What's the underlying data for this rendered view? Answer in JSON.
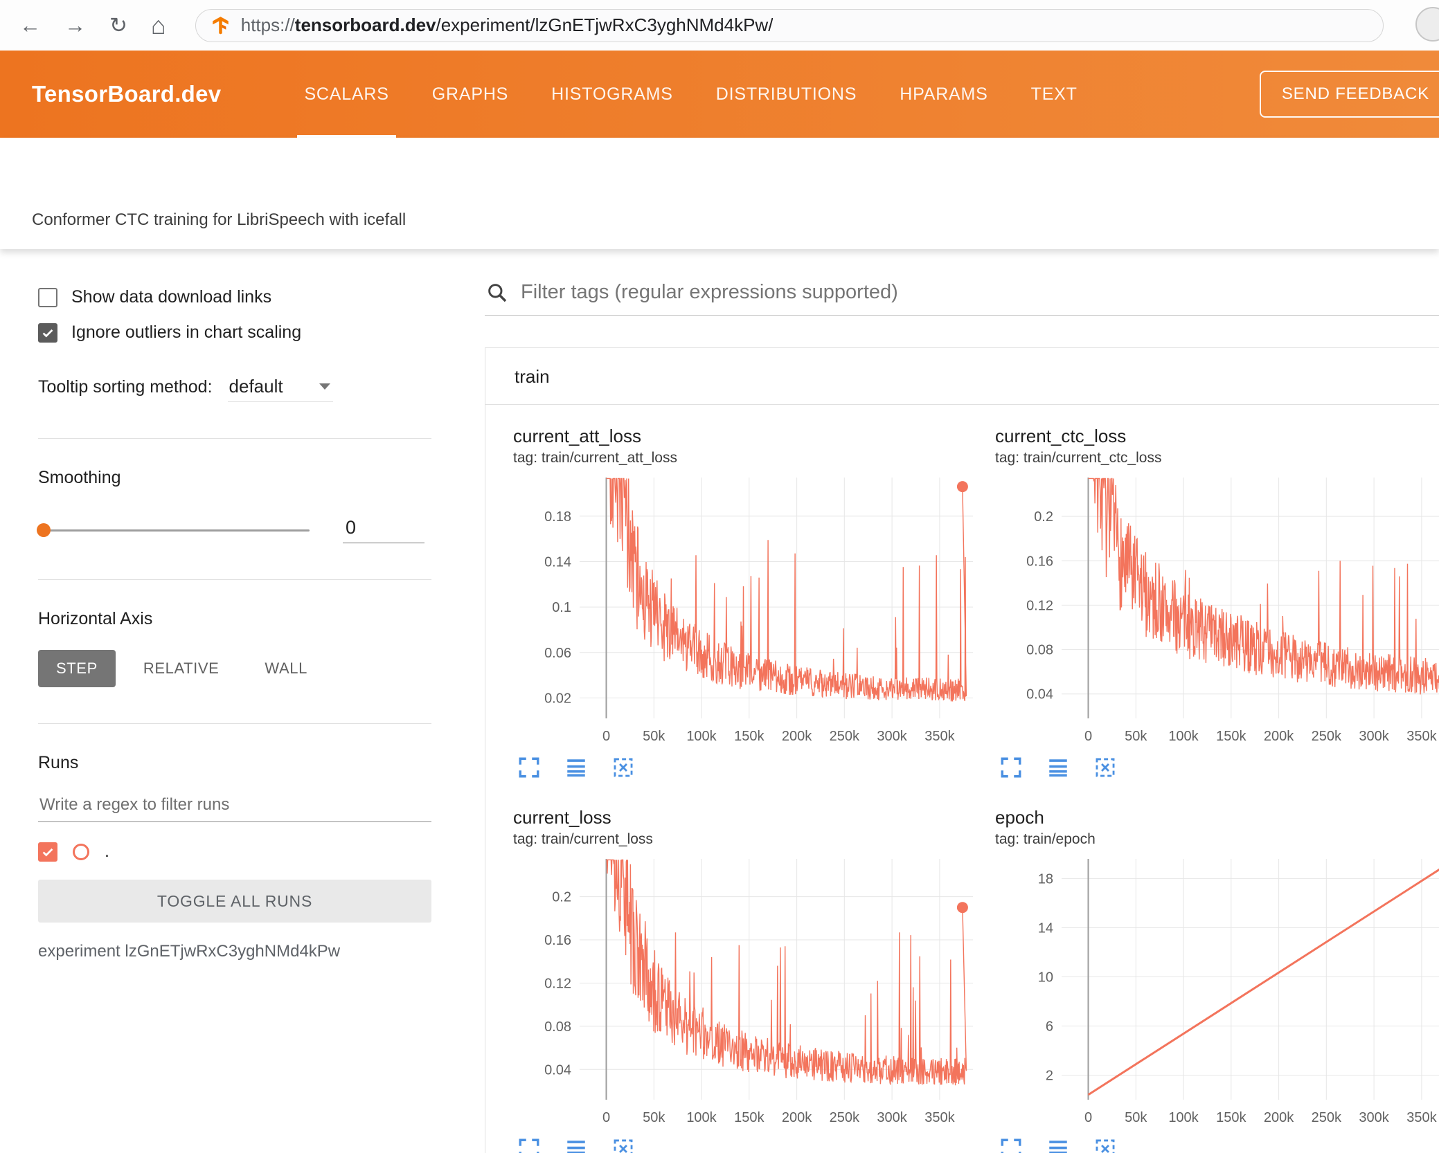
{
  "browser": {
    "back_glyph": "←",
    "forward_glyph": "→",
    "reload_glyph": "↻",
    "home_glyph": "⌂",
    "url_scheme": "https://",
    "url_domain": "tensorboard.dev",
    "url_path": "/experiment/lzGnETjwRxC3yghNMd4kPw/"
  },
  "header": {
    "logo": "TensorBoard.dev",
    "tabs": [
      {
        "label": "SCALARS",
        "active": true
      },
      {
        "label": "GRAPHS",
        "active": false
      },
      {
        "label": "HISTOGRAMS",
        "active": false
      },
      {
        "label": "DISTRIBUTIONS",
        "active": false
      },
      {
        "label": "HPARAMS",
        "active": false
      },
      {
        "label": "TEXT",
        "active": false
      }
    ],
    "feedback_button": "SEND FEEDBACK"
  },
  "subtitle": "Conformer CTC training for LibriSpeech with icefall",
  "sidebar": {
    "show_download_label": "Show data download links",
    "show_download_checked": false,
    "ignore_outliers_label": "Ignore outliers in chart scaling",
    "ignore_outliers_checked": true,
    "tooltip_sorting_label": "Tooltip sorting method:",
    "tooltip_sorting_value": "default",
    "smoothing_label": "Smoothing",
    "smoothing_value": "0",
    "horizontal_axis_label": "Horizontal Axis",
    "axis_buttons": [
      "STEP",
      "RELATIVE",
      "WALL"
    ],
    "axis_active": "STEP",
    "runs_label": "Runs",
    "runs_filter_placeholder": "Write a regex to filter runs",
    "run_item_label": ".",
    "run_checked": true,
    "toggle_all_label": "TOGGLE ALL RUNS",
    "experiment_label": "experiment lzGnETjwRxC3yghNMd4kPw"
  },
  "main": {
    "filter_placeholder": "Filter tags (regular expressions supported)",
    "card_title": "train"
  },
  "icons": {
    "search": "magnifier",
    "back": "left-arrow",
    "forward": "right-arrow",
    "reload": "circular-arrow",
    "home": "house",
    "favicon": "tensorboard-logo",
    "dropdown": "caret-down",
    "checkmark": "check",
    "chart_tools": [
      "fullscreen-corners",
      "log-scale-lines",
      "fit-domain-dashed-square"
    ]
  },
  "colors": {
    "accent_orange": "#ed7420",
    "series": "#f3745c",
    "icon_blue": "#4a90e2",
    "axis_active_gray": "#757575"
  },
  "chart_data": [
    {
      "type": "line",
      "title": "current_att_loss",
      "tag": "tag: train/current_att_loss",
      "xlabel": "step",
      "xlim": [
        -28,
        385
      ],
      "ylim": [
        0.002,
        0.214
      ],
      "xticks": [
        0,
        50,
        100,
        150,
        200,
        250,
        300,
        350
      ],
      "xtick_labels": [
        "0",
        "50k",
        "100k",
        "150k",
        "200k",
        "250k",
        "300k",
        "350k"
      ],
      "yticks": [
        0.02,
        0.06,
        0.1,
        0.14,
        0.18
      ],
      "ytick_labels": [
        "0.02",
        "0.06",
        "0.1",
        "0.14",
        "0.18"
      ],
      "grid": true,
      "color": "#f3745c",
      "gen": {
        "seed": 42,
        "n": 760,
        "x0": 0,
        "x1": 378,
        "jitter": 0.38,
        "spike_prob": 0.055,
        "spike_max": 0.195,
        "spike_pow": 1.6,
        "base": [
          [
            0,
            0.3
          ],
          [
            8,
            0.26
          ],
          [
            18,
            0.19
          ],
          [
            30,
            0.13
          ],
          [
            45,
            0.1
          ],
          [
            70,
            0.075
          ],
          [
            100,
            0.058
          ],
          [
            140,
            0.045
          ],
          [
            180,
            0.038
          ],
          [
            230,
            0.032
          ],
          [
            290,
            0.028
          ],
          [
            378,
            0.027
          ]
        ]
      },
      "end_dot": [
        374,
        0.206
      ]
    },
    {
      "type": "line",
      "title": "current_ctc_loss",
      "tag": "tag: train/current_ctc_loss",
      "xlabel": "step",
      "xlim": [
        -28,
        385
      ],
      "ylim": [
        0.018,
        0.235
      ],
      "xticks": [
        0,
        50,
        100,
        150,
        200,
        250,
        300,
        350
      ],
      "xtick_labels": [
        "0",
        "50k",
        "100k",
        "150k",
        "200k",
        "250k",
        "300k",
        "350k"
      ],
      "yticks": [
        0.04,
        0.08,
        0.12,
        0.16,
        0.2
      ],
      "ytick_labels": [
        "0.04",
        "0.08",
        "0.12",
        "0.16",
        "0.2"
      ],
      "grid": true,
      "color": "#f3745c",
      "gen": {
        "seed": 7,
        "n": 760,
        "x0": 0,
        "x1": 378,
        "jitter": 0.3,
        "spike_prob": 0.05,
        "spike_max": 0.165,
        "spike_pow": 1.6,
        "base": [
          [
            0,
            0.34
          ],
          [
            10,
            0.26
          ],
          [
            20,
            0.2
          ],
          [
            35,
            0.16
          ],
          [
            55,
            0.135
          ],
          [
            80,
            0.115
          ],
          [
            110,
            0.1
          ],
          [
            150,
            0.088
          ],
          [
            200,
            0.075
          ],
          [
            260,
            0.065
          ],
          [
            320,
            0.058
          ],
          [
            378,
            0.055
          ]
        ]
      },
      "end_dot": [
        376,
        0.052
      ]
    },
    {
      "type": "line",
      "title": "current_loss",
      "tag": "tag: train/current_loss",
      "xlabel": "step",
      "xlim": [
        -28,
        385
      ],
      "ylim": [
        0.012,
        0.235
      ],
      "xticks": [
        0,
        50,
        100,
        150,
        200,
        250,
        300,
        350
      ],
      "xtick_labels": [
        "0",
        "50k",
        "100k",
        "150k",
        "200k",
        "250k",
        "300k",
        "350k"
      ],
      "yticks": [
        0.04,
        0.08,
        0.12,
        0.16,
        0.2
      ],
      "ytick_labels": [
        "0.04",
        "0.08",
        "0.12",
        "0.16",
        "0.2"
      ],
      "grid": true,
      "color": "#f3745c",
      "gen": {
        "seed": 13,
        "n": 760,
        "x0": 0,
        "x1": 378,
        "jitter": 0.34,
        "spike_prob": 0.05,
        "spike_max": 0.185,
        "spike_pow": 1.6,
        "base": [
          [
            0,
            0.34
          ],
          [
            10,
            0.27
          ],
          [
            20,
            0.2
          ],
          [
            32,
            0.145
          ],
          [
            50,
            0.11
          ],
          [
            75,
            0.085
          ],
          [
            105,
            0.068
          ],
          [
            145,
            0.056
          ],
          [
            190,
            0.048
          ],
          [
            250,
            0.042
          ],
          [
            320,
            0.038
          ],
          [
            378,
            0.038
          ]
        ]
      },
      "end_dot": [
        374,
        0.19
      ]
    },
    {
      "type": "line",
      "title": "epoch",
      "tag": "tag: train/epoch",
      "xlabel": "step",
      "xlim": [
        -28,
        385
      ],
      "ylim": [
        0,
        19.6
      ],
      "xticks": [
        0,
        50,
        100,
        150,
        200,
        250,
        300,
        350
      ],
      "xtick_labels": [
        "0",
        "50k",
        "100k",
        "150k",
        "200k",
        "250k",
        "300k",
        "350k"
      ],
      "yticks": [
        2,
        6,
        10,
        14,
        18
      ],
      "ytick_labels": [
        "2",
        "6",
        "10",
        "14",
        "18"
      ],
      "grid": true,
      "color": "#f3745c",
      "gen": {
        "seed": 1,
        "n": 2,
        "x0": 0,
        "x1": 378,
        "jitter": 0,
        "spike_prob": 0,
        "spike_max": 0,
        "spike_pow": 1,
        "base": [
          [
            0,
            0.4
          ],
          [
            378,
            19.2
          ]
        ]
      },
      "end_dot": null
    }
  ]
}
